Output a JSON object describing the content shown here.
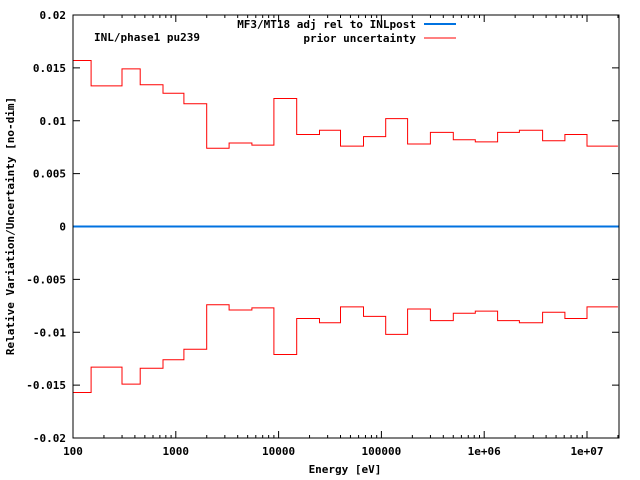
{
  "chart_data": {
    "type": "line",
    "title": "",
    "annotation": "INL/phase1 pu239",
    "xlabel": "Energy [eV]",
    "ylabel": "Relative Variation/Uncertainty [no-dim]",
    "xscale": "log",
    "xlim": [
      100,
      20000000
    ],
    "ylim": [
      -0.02,
      0.02
    ],
    "grid": false,
    "legend_position": "top-right",
    "x_ticks": [
      100,
      1000,
      10000,
      100000,
      1000000,
      10000000
    ],
    "x_tick_labels": [
      "100",
      "1000",
      "10000",
      "100000",
      "1e+06",
      "1e+07"
    ],
    "y_ticks": [
      -0.02,
      -0.015,
      -0.01,
      -0.005,
      0,
      0.005,
      0.01,
      0.015,
      0.02
    ],
    "y_tick_labels": [
      "-0.02",
      "-0.015",
      "-0.01",
      "-0.005",
      "0",
      "0.005",
      "0.01",
      "0.015",
      "0.02"
    ],
    "bin_edges": [
      100,
      150,
      300,
      450,
      750,
      1200,
      2000,
      3300,
      5500,
      9000,
      15000,
      25000,
      40000,
      67000,
      110000,
      180000,
      300000,
      500000,
      820000,
      1350000,
      2200000,
      3700000,
      6100000,
      10000000,
      20000000
    ],
    "series": [
      {
        "name": "MF3/MT18 adj rel to INLpost",
        "color": "#0072e0",
        "style": "line",
        "values": [
          0,
          0
        ]
      },
      {
        "name": "prior uncertainty",
        "color": "#ff0000",
        "style": "steps-symmetric",
        "values": [
          0.0157,
          0.0133,
          0.0149,
          0.0134,
          0.0126,
          0.0116,
          0.0074,
          0.0079,
          0.0077,
          0.0121,
          0.0087,
          0.0091,
          0.0076,
          0.0085,
          0.0102,
          0.0078,
          0.0089,
          0.0082,
          0.008,
          0.0089,
          0.0091,
          0.0081,
          0.0087,
          0.0076
        ]
      }
    ]
  }
}
